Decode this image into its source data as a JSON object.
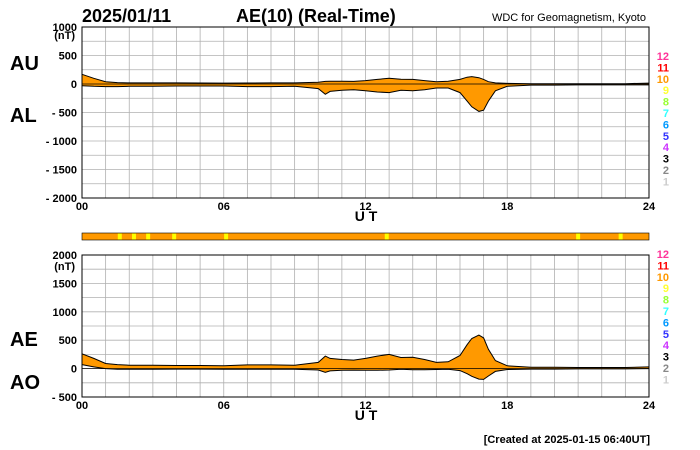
{
  "header": {
    "date": "2025/01/11",
    "title": "AE(10) (Real-Time)",
    "source": "WDC for Geomagnetism, Kyoto"
  },
  "footer": {
    "created": "[Created at 2025-01-15 06:40UT]"
  },
  "colors": {
    "fill": "#ff9900",
    "yellow_marker": "#ffff00",
    "grid": "#b0b0b0",
    "line": "#000000"
  },
  "station_count_legend": [
    {
      "label": "12",
      "color": "#ff3399"
    },
    {
      "label": "11",
      "color": "#ff0000"
    },
    {
      "label": "10",
      "color": "#ff9900"
    },
    {
      "label": "9",
      "color": "#ffff33"
    },
    {
      "label": "8",
      "color": "#99ff33"
    },
    {
      "label": "7",
      "color": "#33ffff"
    },
    {
      "label": "6",
      "color": "#0099ff"
    },
    {
      "label": "5",
      "color": "#3333ff"
    },
    {
      "label": "4",
      "color": "#cc33ff"
    },
    {
      "label": "3",
      "color": "#000000"
    },
    {
      "label": "2",
      "color": "#888888"
    },
    {
      "label": "1",
      "color": "#cccccc"
    }
  ],
  "chart_data": [
    {
      "type": "area",
      "name": "AU/AL panel",
      "series_labels": [
        "AU",
        "AL"
      ],
      "unit": "(nT)",
      "xlabel": "U T",
      "x_ticks": [
        "00",
        "06",
        "12",
        "18",
        "24"
      ],
      "xlim": [
        0,
        24
      ],
      "ylim": [
        -2000,
        1000
      ],
      "y_ticks": [
        "1000",
        "500",
        "0",
        "- 500",
        "- 1000",
        "- 1500",
        "- 2000"
      ],
      "y_tick_values": [
        1000,
        500,
        0,
        -500,
        -1000,
        -1500,
        -2000
      ],
      "grid": true,
      "x": [
        0,
        0.5,
        1,
        1.5,
        2,
        3,
        4,
        5,
        6,
        7,
        8,
        9,
        10,
        10.3,
        10.5,
        11,
        11.5,
        12,
        12.5,
        13,
        13.5,
        14,
        14.5,
        15,
        15.5,
        16,
        16.3,
        16.5,
        16.8,
        17,
        17.2,
        17.5,
        18,
        19,
        20,
        21,
        22,
        23,
        24
      ],
      "upper": [
        170,
        100,
        40,
        25,
        20,
        20,
        20,
        18,
        15,
        18,
        20,
        20,
        30,
        45,
        50,
        50,
        45,
        60,
        80,
        100,
        85,
        80,
        60,
        40,
        50,
        80,
        120,
        130,
        110,
        80,
        40,
        20,
        10,
        5,
        5,
        5,
        5,
        5,
        15
      ],
      "lower": [
        -30,
        -40,
        -45,
        -45,
        -40,
        -40,
        -35,
        -35,
        -35,
        -45,
        -45,
        -40,
        -80,
        -180,
        -130,
        -110,
        -100,
        -120,
        -140,
        -150,
        -110,
        -120,
        -100,
        -70,
        -70,
        -150,
        -300,
        -400,
        -480,
        -460,
        -300,
        -120,
        -40,
        -20,
        -20,
        -15,
        -15,
        -15,
        -15
      ]
    },
    {
      "type": "area",
      "name": "AE/AO panel",
      "series_labels": [
        "AE",
        "AO"
      ],
      "unit": "(nT)",
      "xlabel": "U T",
      "x_ticks": [
        "00",
        "06",
        "12",
        "18",
        "24"
      ],
      "xlim": [
        0,
        24
      ],
      "ylim": [
        -500,
        2000
      ],
      "y_ticks": [
        "2000",
        "1500",
        "1000",
        "500",
        "0",
        "- 500"
      ],
      "y_tick_values": [
        2000,
        1500,
        1000,
        500,
        0,
        -500
      ],
      "grid": true,
      "x": [
        0,
        0.5,
        1,
        1.5,
        2,
        3,
        4,
        5,
        6,
        7,
        8,
        9,
        10,
        10.3,
        10.5,
        11,
        11.5,
        12,
        12.5,
        13,
        13.5,
        14,
        14.5,
        15,
        15.5,
        16,
        16.3,
        16.5,
        16.8,
        17,
        17.2,
        17.5,
        18,
        19,
        20,
        21,
        22,
        23,
        24
      ],
      "upper": [
        260,
        180,
        90,
        70,
        60,
        60,
        55,
        55,
        50,
        65,
        65,
        60,
        110,
        220,
        180,
        160,
        150,
        180,
        220,
        250,
        195,
        200,
        160,
        110,
        120,
        230,
        420,
        530,
        590,
        540,
        340,
        140,
        50,
        25,
        25,
        20,
        20,
        20,
        30
      ],
      "lower": [
        70,
        30,
        0,
        -10,
        -10,
        -10,
        -8,
        -8,
        -10,
        -13,
        -12,
        -10,
        -25,
        -67,
        -40,
        -30,
        -27,
        -30,
        -30,
        -25,
        -12,
        -20,
        -20,
        -15,
        -10,
        -35,
        -90,
        -135,
        -185,
        -190,
        -130,
        -50,
        -15,
        -8,
        -8,
        -5,
        -5,
        -5,
        0
      ]
    }
  ],
  "station_status_bar": {
    "base_color": "#ff9900",
    "yellow_marks_at_ut": [
      1.6,
      2.2,
      2.8,
      3.9,
      6.1,
      12.9,
      21.0,
      22.8
    ]
  }
}
